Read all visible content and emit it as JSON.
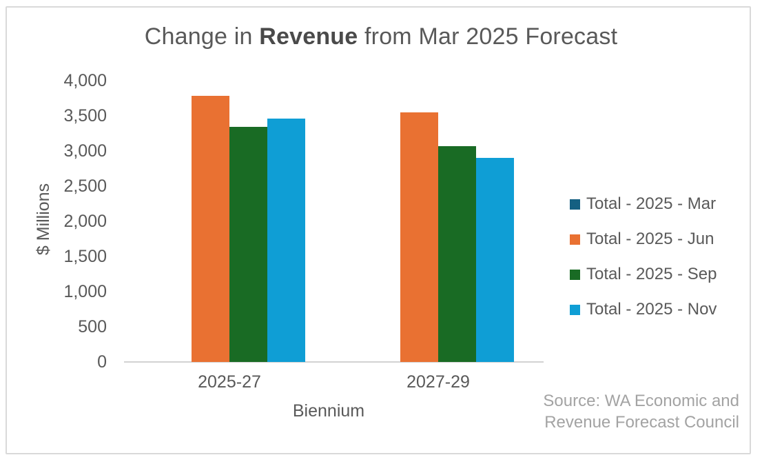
{
  "chart_data": {
    "type": "bar",
    "title": "Change in Revenue from Mar 2025 Forecast",
    "title_prefix": "Change in ",
    "title_bold": "Revenue",
    "title_suffix": " from Mar 2025 Forecast",
    "categories": [
      "2025-27",
      "2027-29"
    ],
    "series": [
      {
        "name": "Total - 2025 - Mar",
        "color": "#156082",
        "values": [
          0,
          0
        ]
      },
      {
        "name": "Total - 2025 - Jun",
        "color": "#E97132",
        "values": [
          3780,
          3550
        ]
      },
      {
        "name": "Total - 2025 - Sep",
        "color": "#196B24",
        "values": [
          3340,
          3070
        ]
      },
      {
        "name": "Total - 2025 - Nov",
        "color": "#0F9ED5",
        "values": [
          3460,
          2900
        ]
      }
    ],
    "xlabel": "Biennium",
    "ylabel": "$ Millions",
    "ylim": [
      0,
      4000
    ],
    "ytick_step": 500,
    "yticks": [
      {
        "value": 4000,
        "label": "4,000"
      },
      {
        "value": 3500,
        "label": "3,500"
      },
      {
        "value": 3000,
        "label": "3,000"
      },
      {
        "value": 2500,
        "label": "2,500"
      },
      {
        "value": 2000,
        "label": "2,000"
      },
      {
        "value": 1500,
        "label": "1,500"
      },
      {
        "value": 1000,
        "label": "1,000"
      },
      {
        "value": 500,
        "label": "500"
      },
      {
        "value": 0,
        "label": "0"
      }
    ],
    "gridlines": false,
    "legend_position": "right",
    "source_note": {
      "line1": "Source: WA Economic and",
      "line2": "Revenue Forecast Council"
    }
  }
}
